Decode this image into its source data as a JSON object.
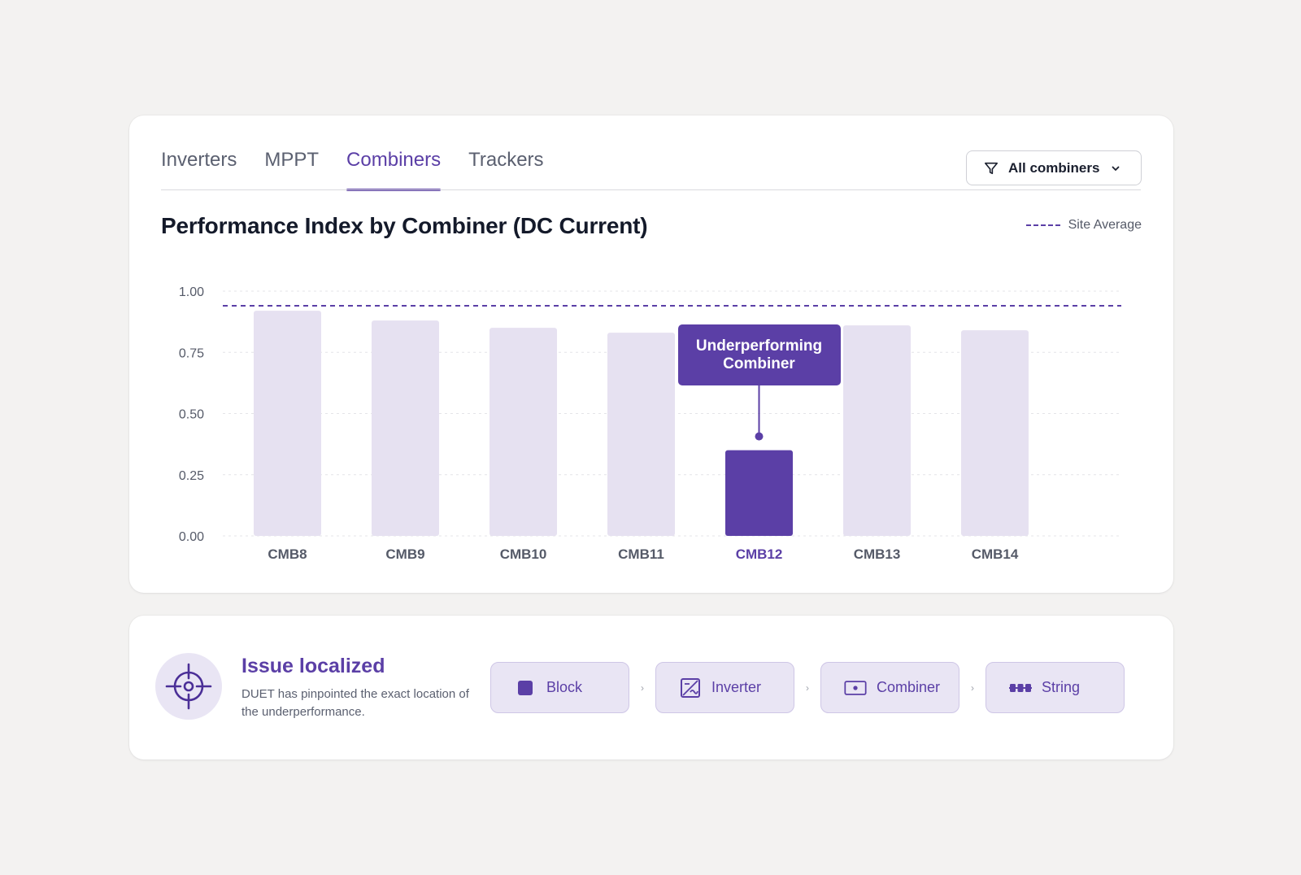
{
  "tabs": [
    {
      "label": "Inverters",
      "active": false
    },
    {
      "label": "MPPT",
      "active": false
    },
    {
      "label": "Combiners",
      "active": true
    },
    {
      "label": "Trackers",
      "active": false
    }
  ],
  "filter": {
    "label": "All combiners",
    "icon": "filter-icon"
  },
  "legend": {
    "label": "Site Average"
  },
  "callout": {
    "line1": "Underperforming",
    "line2": "Combiner"
  },
  "colors": {
    "accent": "#5b3fa6",
    "bar": "#e6e1f1",
    "highlight_bar": "#5b3fa6",
    "tick_text": "#555a68"
  },
  "chart_data": {
    "type": "bar",
    "title": "Performance Index by Combiner (DC Current)",
    "categories": [
      "CMB8",
      "CMB9",
      "CMB10",
      "CMB11",
      "CMB12",
      "CMB13",
      "CMB14"
    ],
    "values": [
      0.92,
      0.88,
      0.85,
      0.83,
      0.35,
      0.86,
      0.84
    ],
    "highlight": "CMB12",
    "reference_line": {
      "label": "Site Average",
      "value": 0.94,
      "style": "dashed"
    },
    "ylim": [
      0,
      1
    ],
    "yticks": [
      "0.00",
      "0.25",
      "0.50",
      "0.75",
      "1.00"
    ],
    "ytick_values": [
      0,
      0.25,
      0.5,
      0.75,
      1
    ],
    "grid": true,
    "legend_position": "top-right",
    "xlabel": "",
    "ylabel": ""
  },
  "issue": {
    "title": "Issue localized",
    "description": "DUET has pinpointed the exact location of the underperformance.",
    "icon": "crosshair-icon",
    "path": [
      {
        "label": "Block",
        "icon": "square-icon"
      },
      {
        "label": "Inverter",
        "icon": "inverter-icon"
      },
      {
        "label": "Combiner",
        "icon": "combiner-icon"
      },
      {
        "label": "String",
        "icon": "string-icon"
      }
    ]
  }
}
